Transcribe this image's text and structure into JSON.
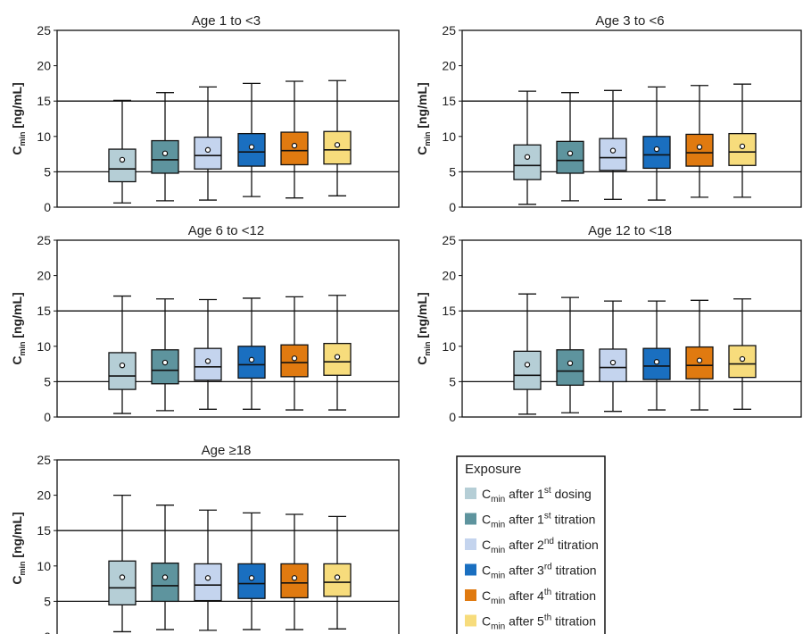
{
  "chart_data": {
    "type": "box",
    "ylabel": {
      "main": "C",
      "sub": "min",
      "unit": " [ng/mL]"
    },
    "ylim": [
      0,
      25
    ],
    "yticks": [
      0,
      5,
      10,
      15,
      20,
      25
    ],
    "reference_lines": [
      5,
      15
    ],
    "series": [
      {
        "color": "#b5ced6",
        "label": {
          "pre": "C",
          "sub": "min",
          "mid": " after 1",
          "sup": "st",
          "post": " dosing"
        }
      },
      {
        "color": "#5e949e",
        "label": {
          "pre": "C",
          "sub": "min",
          "mid": " after 1",
          "sup": "st",
          "post": " titration"
        }
      },
      {
        "color": "#c4d4ee",
        "label": {
          "pre": "C",
          "sub": "min",
          "mid": " after 2",
          "sup": "nd",
          "post": " titration"
        }
      },
      {
        "color": "#1a6fc0",
        "label": {
          "pre": "C",
          "sub": "min",
          "mid": " after 3",
          "sup": "rd",
          "post": " titration"
        }
      },
      {
        "color": "#e07a10",
        "label": {
          "pre": "C",
          "sub": "min",
          "mid": " after 4",
          "sup": "th",
          "post": " titration"
        }
      },
      {
        "color": "#f7dc7c",
        "label": {
          "pre": "C",
          "sub": "min",
          "mid": " after 5",
          "sup": "th",
          "post": " titration"
        }
      }
    ],
    "panels": [
      {
        "title": "Age 1 to <3",
        "boxes": [
          {
            "whislo": 0.6,
            "q1": 3.6,
            "med": 5.4,
            "q3": 8.2,
            "whishi": 15.1,
            "mean": 6.7
          },
          {
            "whislo": 0.9,
            "q1": 4.8,
            "med": 6.7,
            "q3": 9.4,
            "whishi": 16.2,
            "mean": 7.6
          },
          {
            "whislo": 1.0,
            "q1": 5.4,
            "med": 7.3,
            "q3": 9.9,
            "whishi": 17.0,
            "mean": 8.1
          },
          {
            "whislo": 1.5,
            "q1": 5.8,
            "med": 7.8,
            "q3": 10.4,
            "whishi": 17.5,
            "mean": 8.5
          },
          {
            "whislo": 1.3,
            "q1": 6.0,
            "med": 8.0,
            "q3": 10.6,
            "whishi": 17.8,
            "mean": 8.7
          },
          {
            "whislo": 1.6,
            "q1": 6.1,
            "med": 8.1,
            "q3": 10.7,
            "whishi": 17.9,
            "mean": 8.8
          }
        ]
      },
      {
        "title": "Age 3 to <6",
        "boxes": [
          {
            "whislo": 0.4,
            "q1": 3.9,
            "med": 5.9,
            "q3": 8.8,
            "whishi": 16.4,
            "mean": 7.1
          },
          {
            "whislo": 0.9,
            "q1": 4.8,
            "med": 6.6,
            "q3": 9.3,
            "whishi": 16.2,
            "mean": 7.6
          },
          {
            "whislo": 1.1,
            "q1": 5.2,
            "med": 7.0,
            "q3": 9.7,
            "whishi": 16.5,
            "mean": 8.0
          },
          {
            "whislo": 1.0,
            "q1": 5.5,
            "med": 7.4,
            "q3": 10.0,
            "whishi": 17.0,
            "mean": 8.2
          },
          {
            "whislo": 1.4,
            "q1": 5.8,
            "med": 7.7,
            "q3": 10.3,
            "whishi": 17.2,
            "mean": 8.5
          },
          {
            "whislo": 1.4,
            "q1": 5.9,
            "med": 7.8,
            "q3": 10.4,
            "whishi": 17.4,
            "mean": 8.6
          }
        ]
      },
      {
        "title": "Age 6 to <12",
        "boxes": [
          {
            "whislo": 0.5,
            "q1": 3.9,
            "med": 5.8,
            "q3": 9.1,
            "whishi": 17.1,
            "mean": 7.3
          },
          {
            "whislo": 0.9,
            "q1": 4.7,
            "med": 6.6,
            "q3": 9.5,
            "whishi": 16.7,
            "mean": 7.7
          },
          {
            "whislo": 1.1,
            "q1": 5.2,
            "med": 7.1,
            "q3": 9.7,
            "whishi": 16.6,
            "mean": 7.9
          },
          {
            "whislo": 1.1,
            "q1": 5.5,
            "med": 7.4,
            "q3": 10.0,
            "whishi": 16.8,
            "mean": 8.1
          },
          {
            "whislo": 1.0,
            "q1": 5.7,
            "med": 7.7,
            "q3": 10.2,
            "whishi": 17.0,
            "mean": 8.3
          },
          {
            "whislo": 1.0,
            "q1": 5.9,
            "med": 7.8,
            "q3": 10.4,
            "whishi": 17.2,
            "mean": 8.5
          }
        ]
      },
      {
        "title": "Age 12 to <18",
        "boxes": [
          {
            "whislo": 0.4,
            "q1": 3.9,
            "med": 5.9,
            "q3": 9.3,
            "whishi": 17.4,
            "mean": 7.4
          },
          {
            "whislo": 0.6,
            "q1": 4.5,
            "med": 6.5,
            "q3": 9.5,
            "whishi": 16.9,
            "mean": 7.6
          },
          {
            "whislo": 0.8,
            "q1": 5.0,
            "med": 7.0,
            "q3": 9.6,
            "whishi": 16.4,
            "mean": 7.7
          },
          {
            "whislo": 1.0,
            "q1": 5.3,
            "med": 7.2,
            "q3": 9.7,
            "whishi": 16.4,
            "mean": 7.8
          },
          {
            "whislo": 1.0,
            "q1": 5.4,
            "med": 7.3,
            "q3": 9.9,
            "whishi": 16.5,
            "mean": 8.0
          },
          {
            "whislo": 1.1,
            "q1": 5.6,
            "med": 7.5,
            "q3": 10.1,
            "whishi": 16.7,
            "mean": 8.2
          }
        ]
      },
      {
        "title": "Age ≥18",
        "boxes": [
          {
            "whislo": 0.7,
            "q1": 4.5,
            "med": 6.9,
            "q3": 10.7,
            "whishi": 20.0,
            "mean": 8.4
          },
          {
            "whislo": 1.0,
            "q1": 5.0,
            "med": 7.2,
            "q3": 10.4,
            "whishi": 18.6,
            "mean": 8.4
          },
          {
            "whislo": 0.9,
            "q1": 5.1,
            "med": 7.3,
            "q3": 10.3,
            "whishi": 17.9,
            "mean": 8.3
          },
          {
            "whislo": 1.0,
            "q1": 5.4,
            "med": 7.5,
            "q3": 10.3,
            "whishi": 17.5,
            "mean": 8.3
          },
          {
            "whislo": 1.0,
            "q1": 5.5,
            "med": 7.6,
            "q3": 10.3,
            "whishi": 17.3,
            "mean": 8.3
          },
          {
            "whislo": 1.1,
            "q1": 5.7,
            "med": 7.7,
            "q3": 10.3,
            "whishi": 17.0,
            "mean": 8.4
          }
        ]
      }
    ],
    "legend": {
      "title": "Exposure",
      "position": "bottom-right"
    }
  }
}
